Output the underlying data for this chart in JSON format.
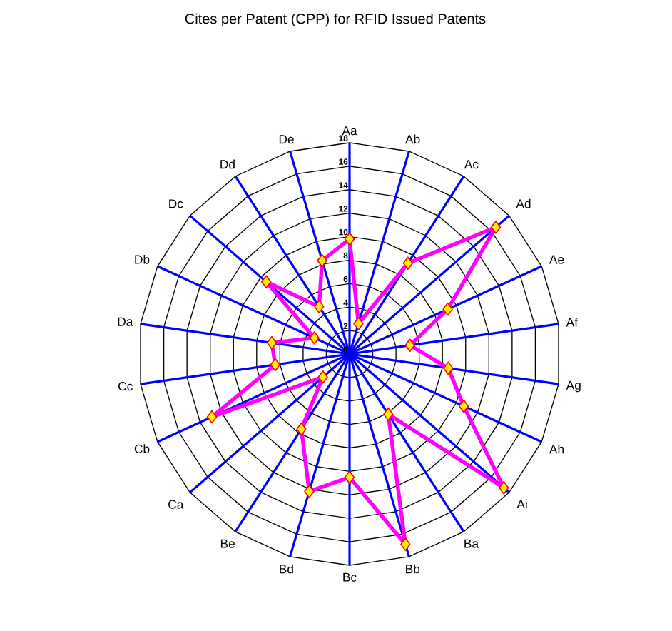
{
  "chart_data": {
    "type": "radar",
    "title": "Cites per Patent (CPP) for RFID Issued Patents",
    "categories": [
      "Aa",
      "Ab",
      "Ac",
      "Ad",
      "Ae",
      "Af",
      "Ag",
      "Ah",
      "Ai",
      "Ba",
      "Bb",
      "Bc",
      "Bd",
      "Be",
      "Ca",
      "Cb",
      "Cc",
      "Da",
      "Db",
      "Dc",
      "Dd",
      "De"
    ],
    "series": [
      {
        "color": "#ff00ff",
        "values": [
          9.8,
          2.7,
          9.2,
          16.5,
          9.2,
          5.2,
          8.5,
          10.7,
          17.4,
          6.1,
          16.9,
          10.5,
          12.2,
          7.6,
          3.0,
          12.9,
          6.4,
          6.7,
          3.3,
          9.4,
          4.8,
          8.3
        ]
      }
    ],
    "ylim": [
      0,
      18
    ],
    "yticks": [
      0,
      2,
      4,
      6,
      8,
      10,
      12,
      14,
      16,
      18
    ],
    "grid": true,
    "marker": "diamond"
  }
}
